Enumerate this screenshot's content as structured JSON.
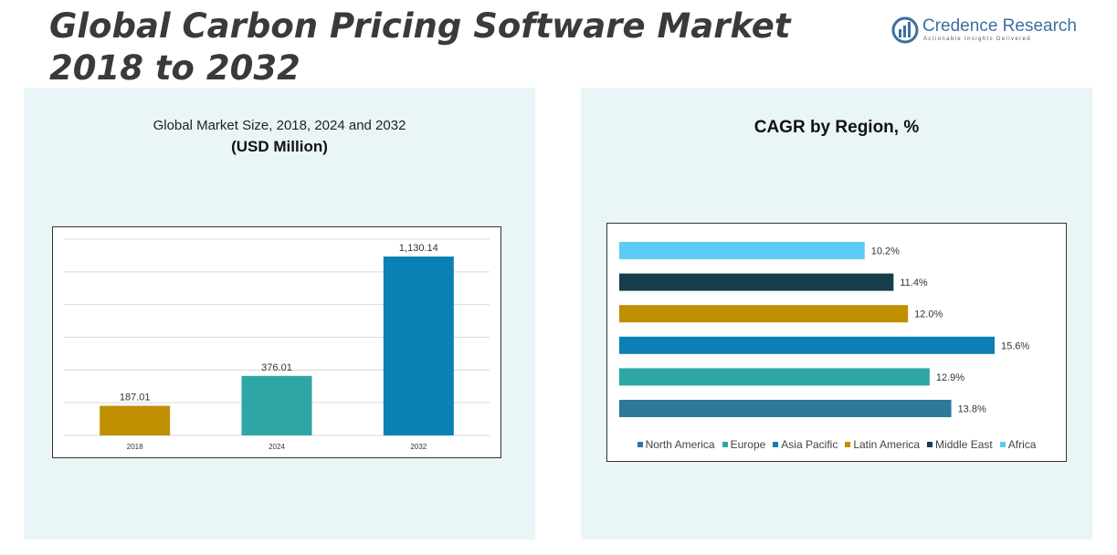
{
  "header": {
    "title_line1": "Global Carbon Pricing Software Market",
    "title_line2": "2018 to 2032"
  },
  "logo": {
    "name": "Credence Research",
    "tagline": "Actionable Insights Delivered"
  },
  "chart_data": [
    {
      "type": "bar",
      "title": "Global Market Size, 2018, 2024 and 2032",
      "subtitle": "(USD Million)",
      "categories": [
        "2018",
        "2024",
        "2032"
      ],
      "values": [
        187.01,
        376.01,
        1130.14
      ],
      "value_labels": [
        "187.01",
        "376.01",
        "1,130.14"
      ],
      "colors": [
        "#c08f00",
        "#2ea6a6",
        "#0a80b5"
      ],
      "ylim": [
        0,
        1240
      ],
      "grid": true,
      "xlabel": "",
      "ylabel": ""
    },
    {
      "type": "bar",
      "orientation": "horizontal",
      "title": "CAGR by Region, %",
      "categories": [
        "Africa",
        "Middle East",
        "Latin America",
        "Asia Pacific",
        "Europe",
        "North America"
      ],
      "values": [
        10.2,
        11.4,
        12.0,
        15.6,
        12.9,
        13.8
      ],
      "value_labels": [
        "10.2%",
        "11.4%",
        "12.0%",
        "15.6%",
        "12.9%",
        "13.8%"
      ],
      "colors": [
        "#5ecbf5",
        "#173d4c",
        "#c08f00",
        "#0a80b5",
        "#2ea6a6",
        "#2e7899"
      ],
      "xlim": [
        0,
        15.6
      ],
      "legend": {
        "position": "bottom",
        "items": [
          {
            "name": "North America",
            "color": "#2e7899"
          },
          {
            "name": "Europe",
            "color": "#2ea6a6"
          },
          {
            "name": "Asia Pacific",
            "color": "#0a80b5"
          },
          {
            "name": "Latin America",
            "color": "#c08f00"
          },
          {
            "name": "Middle East",
            "color": "#173d4c"
          },
          {
            "name": "Africa",
            "color": "#5ecbf5"
          }
        ]
      }
    }
  ]
}
